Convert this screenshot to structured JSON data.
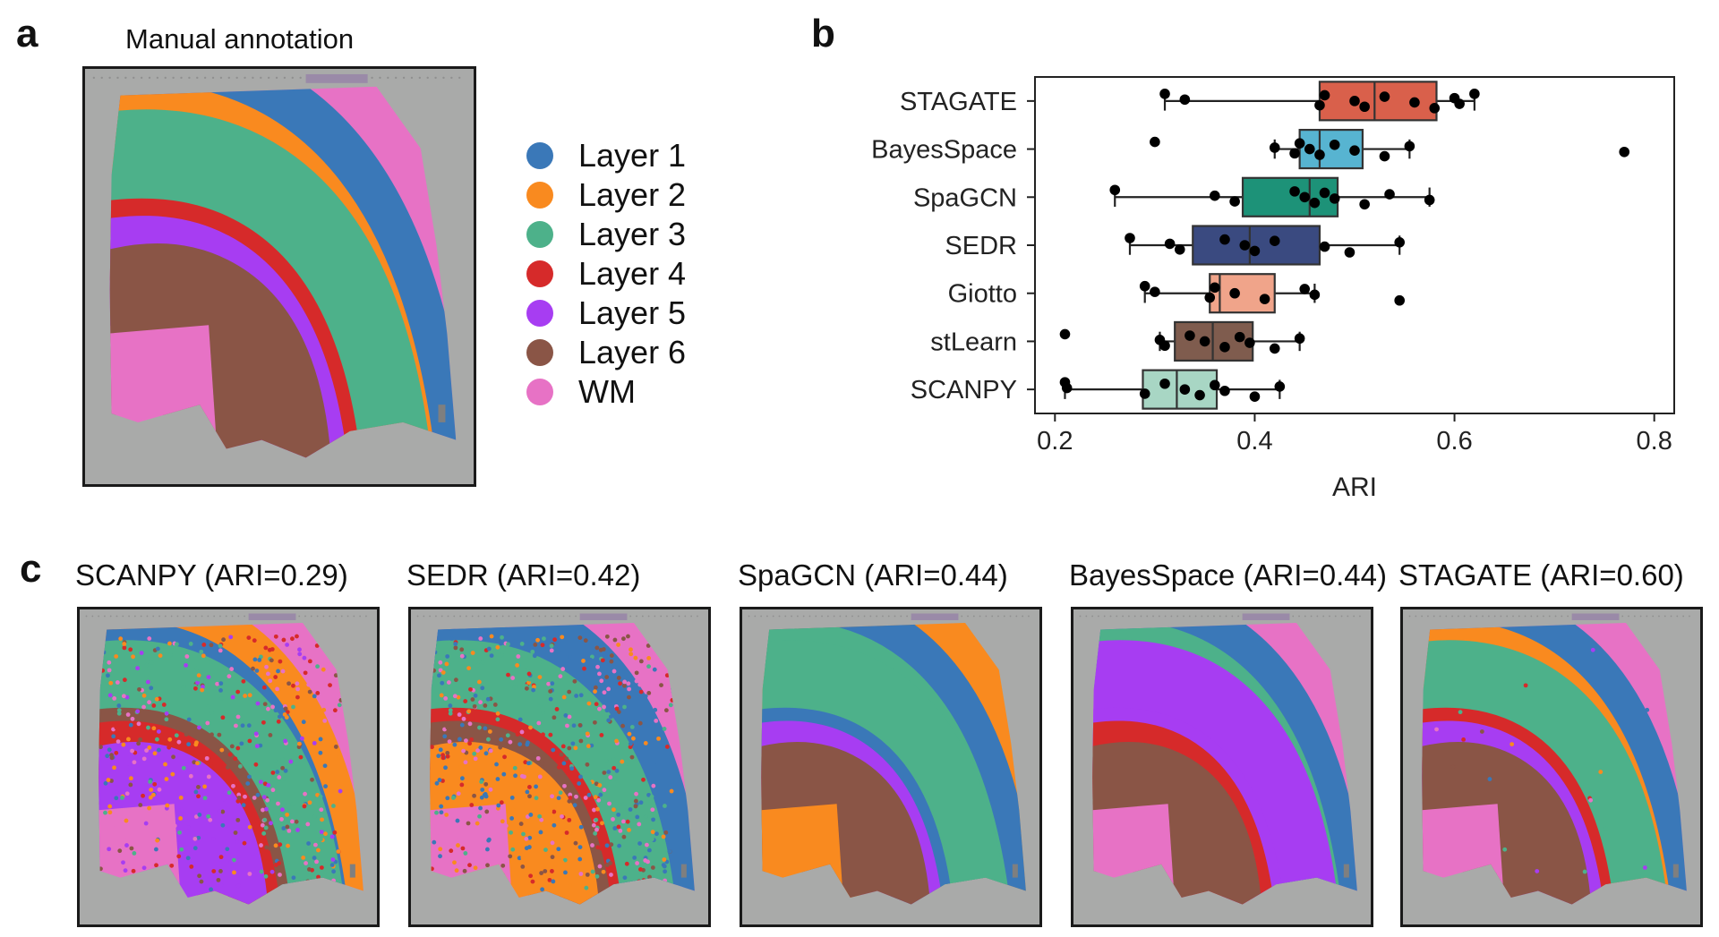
{
  "panel_a": {
    "letter": "a",
    "title": "Manual annotation",
    "legend": [
      {
        "label": "Layer 1",
        "color": "#3a78b8"
      },
      {
        "label": "Layer 2",
        "color": "#f98a1f"
      },
      {
        "label": "Layer 3",
        "color": "#4db18a"
      },
      {
        "label": "Layer 4",
        "color": "#d62a2a"
      },
      {
        "label": "Layer 5",
        "color": "#a73df2"
      },
      {
        "label": "Layer 6",
        "color": "#8a5546"
      },
      {
        "label": "WM",
        "color": "#e772c5"
      }
    ]
  },
  "panel_b": {
    "letter": "b"
  },
  "panel_c": {
    "letter": "c",
    "maps": [
      {
        "title": "SCANPY (ARI=0.29)"
      },
      {
        "title": "SEDR (ARI=0.42)"
      },
      {
        "title": "SpaGCN (ARI=0.44)"
      },
      {
        "title": "BayesSpace (ARI=0.44)"
      },
      {
        "title": "STAGATE (ARI=0.60)"
      }
    ]
  },
  "chart_data": {
    "type": "box",
    "orientation": "horizontal",
    "xlabel": "ARI",
    "xlim": [
      0.18,
      0.82
    ],
    "xticks": [
      0.2,
      0.4,
      0.6,
      0.8
    ],
    "xtick_labels": [
      "0.2",
      "0.4",
      "0.6",
      "0.8"
    ],
    "grid": false,
    "series": [
      {
        "name": "STAGATE",
        "color": "#d9604b",
        "q1": 0.465,
        "median": 0.52,
        "q3": 0.582,
        "whisker_low": 0.31,
        "whisker_high": 0.62,
        "outliers": [],
        "points": [
          0.31,
          0.33,
          0.465,
          0.47,
          0.5,
          0.51,
          0.53,
          0.56,
          0.58,
          0.6,
          0.605,
          0.62
        ]
      },
      {
        "name": "BayesSpace",
        "color": "#57b4d1",
        "q1": 0.445,
        "median": 0.465,
        "q3": 0.508,
        "whisker_low": 0.42,
        "whisker_high": 0.555,
        "outliers": [
          0.3,
          0.77
        ],
        "points": [
          0.3,
          0.42,
          0.44,
          0.445,
          0.455,
          0.465,
          0.48,
          0.5,
          0.53,
          0.555,
          0.77
        ]
      },
      {
        "name": "SpaGCN",
        "color": "#1d9278",
        "q1": 0.388,
        "median": 0.455,
        "q3": 0.483,
        "whisker_low": 0.26,
        "whisker_high": 0.575,
        "outliers": [],
        "points": [
          0.26,
          0.36,
          0.38,
          0.44,
          0.45,
          0.46,
          0.47,
          0.48,
          0.51,
          0.535,
          0.575
        ]
      },
      {
        "name": "SEDR",
        "color": "#3a4a80",
        "q1": 0.338,
        "median": 0.395,
        "q3": 0.465,
        "whisker_low": 0.275,
        "whisker_high": 0.545,
        "outliers": [],
        "points": [
          0.275,
          0.315,
          0.325,
          0.37,
          0.39,
          0.4,
          0.42,
          0.47,
          0.495,
          0.545
        ]
      },
      {
        "name": "Giotto",
        "color": "#f0a48a",
        "q1": 0.355,
        "median": 0.365,
        "q3": 0.42,
        "whisker_low": 0.29,
        "whisker_high": 0.46,
        "outliers": [
          0.545
        ],
        "points": [
          0.29,
          0.3,
          0.355,
          0.36,
          0.38,
          0.41,
          0.45,
          0.46,
          0.545
        ]
      },
      {
        "name": "stLearn",
        "color": "#7f5c4e",
        "q1": 0.32,
        "median": 0.358,
        "q3": 0.398,
        "whisker_low": 0.305,
        "whisker_high": 0.445,
        "outliers": [
          0.21
        ],
        "points": [
          0.21,
          0.305,
          0.31,
          0.335,
          0.35,
          0.37,
          0.385,
          0.395,
          0.42,
          0.445
        ]
      },
      {
        "name": "SCANPY",
        "color": "#a8d6c4",
        "q1": 0.288,
        "median": 0.322,
        "q3": 0.362,
        "whisker_low": 0.21,
        "whisker_high": 0.425,
        "outliers": [],
        "points": [
          0.21,
          0.212,
          0.29,
          0.31,
          0.33,
          0.345,
          0.36,
          0.37,
          0.4,
          0.425
        ]
      }
    ]
  }
}
